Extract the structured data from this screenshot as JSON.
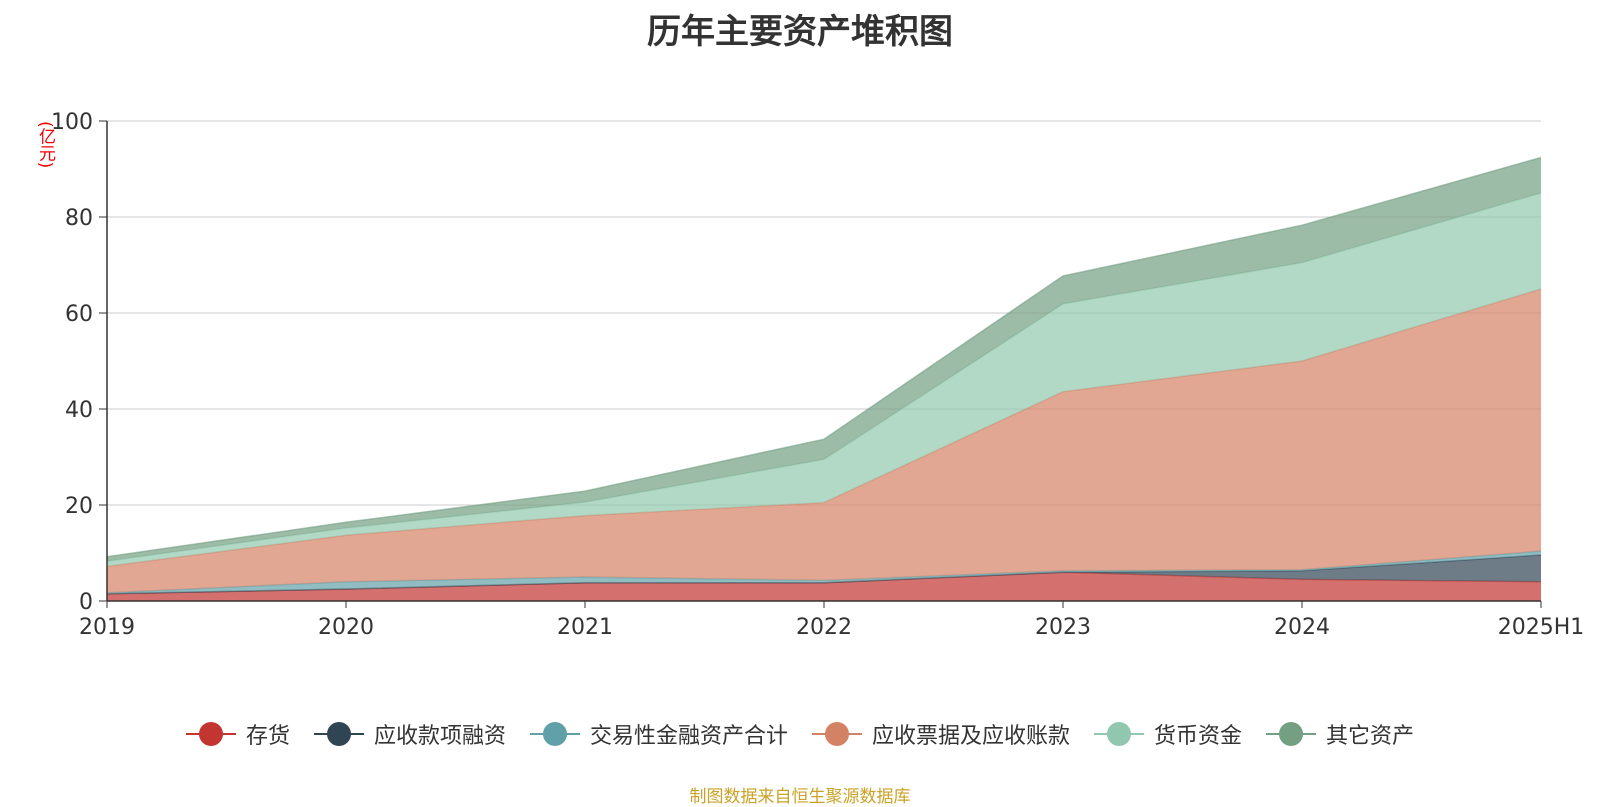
{
  "chart_data": {
    "type": "area",
    "stacked": true,
    "title": "历年主要资产堆积图",
    "ylabel": "(亿元)",
    "xlabel": "",
    "categories": [
      "2019",
      "2020",
      "2021",
      "2022",
      "2023",
      "2024",
      "2025H1"
    ],
    "ylim": [
      0,
      100
    ],
    "yticks": [
      "0",
      "20",
      "40",
      "60",
      "80",
      "100"
    ],
    "grid": true,
    "legend_position": "bottom",
    "series": [
      {
        "name": "存货",
        "color": "#c23531",
        "values": [
          1.5,
          2.5,
          3.8,
          3.8,
          6.0,
          4.5,
          4.0
        ]
      },
      {
        "name": "应收款项融资",
        "color": "#2f4554",
        "values": [
          0.0,
          0.0,
          0.0,
          0.0,
          0.0,
          1.8,
          5.6
        ]
      },
      {
        "name": "交易性金融资产合计",
        "color": "#61a0a8",
        "values": [
          0.2,
          1.5,
          1.2,
          0.5,
          0.3,
          0.2,
          0.8
        ]
      },
      {
        "name": "应收票据及应收账款",
        "color": "#d48265",
        "values": [
          5.5,
          9.7,
          12.8,
          16.2,
          37.3,
          43.5,
          54.6
        ]
      },
      {
        "name": "货币资金",
        "color": "#91c7ae",
        "values": [
          1.1,
          1.5,
          2.8,
          9.0,
          18.3,
          20.5,
          20.0
        ]
      },
      {
        "name": "其它资产",
        "color": "#749f83",
        "values": [
          0.9,
          1.2,
          2.3,
          4.2,
          5.8,
          7.8,
          7.4
        ]
      }
    ]
  },
  "source_note": "制图数据来自恒生聚源数据库"
}
